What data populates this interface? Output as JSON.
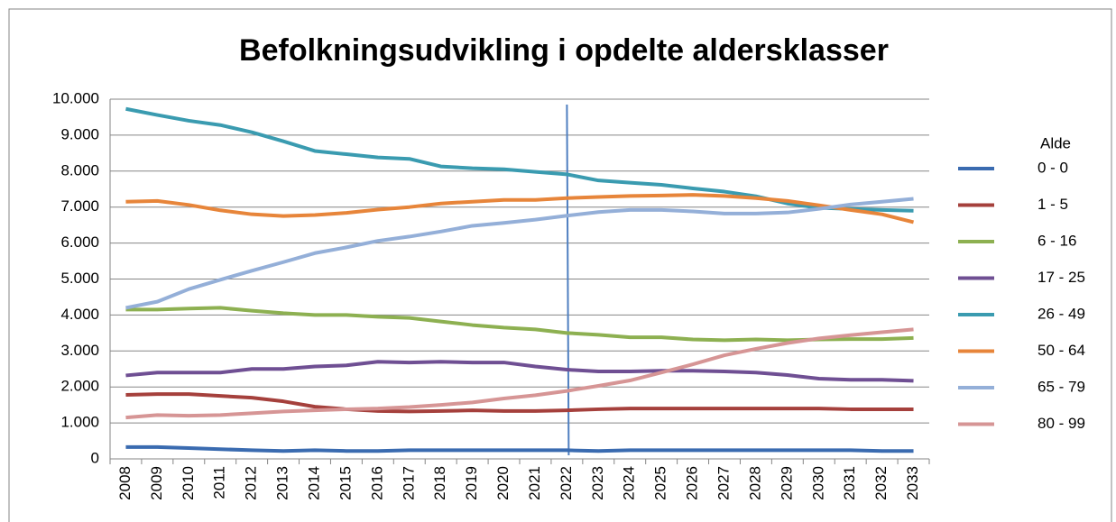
{
  "chart_data": {
    "type": "line",
    "title": "Befolkningsudvikling i opdelte aldersklasser",
    "legend_title": "Alde",
    "legend": "right",
    "grid": true,
    "vline_x": "2022",
    "categories": [
      "2008",
      "2009",
      "2010",
      "2011",
      "2012",
      "2013",
      "2014",
      "2015",
      "2016",
      "2017",
      "2018",
      "2019",
      "2020",
      "2021",
      "2022",
      "2023",
      "2024",
      "2025",
      "2026",
      "2027",
      "2028",
      "2029",
      "2030",
      "2031",
      "2032",
      "2033"
    ],
    "ylim": [
      0,
      10000
    ],
    "yticks": [
      0,
      {
        "value": 1000,
        "label": "1.000"
      },
      {
        "value": 2000,
        "label": "2.000"
      },
      {
        "value": 3000,
        "label": "3.000"
      },
      {
        "value": 4000,
        "label": "4.000"
      },
      {
        "value": 5000,
        "label": "5.000"
      },
      {
        "value": 6000,
        "label": "6.000"
      },
      {
        "value": 7000,
        "label": "7.000"
      },
      {
        "value": 8000,
        "label": "8.000"
      },
      {
        "value": 9000,
        "label": "9.000"
      },
      {
        "value": 10000,
        "label": "10.000"
      }
    ],
    "series": [
      {
        "name": "0 - 0",
        "color": "#3a6bb0",
        "values": [
          330,
          330,
          300,
          270,
          240,
          220,
          240,
          220,
          220,
          240,
          240,
          240,
          240,
          240,
          240,
          220,
          240,
          240,
          240,
          240,
          240,
          240,
          240,
          240,
          220,
          220
        ]
      },
      {
        "name": "1 - 5",
        "color": "#a5403c",
        "values": [
          1780,
          1800,
          1800,
          1750,
          1700,
          1600,
          1450,
          1380,
          1330,
          1320,
          1330,
          1350,
          1330,
          1330,
          1350,
          1380,
          1400,
          1400,
          1400,
          1400,
          1400,
          1400,
          1400,
          1380,
          1380,
          1380
        ]
      },
      {
        "name": "6 - 16",
        "color": "#8db051",
        "values": [
          4150,
          4150,
          4180,
          4200,
          4120,
          4050,
          4000,
          4000,
          3950,
          3920,
          3820,
          3720,
          3650,
          3600,
          3500,
          3450,
          3380,
          3380,
          3320,
          3300,
          3320,
          3300,
          3320,
          3330,
          3330,
          3360
        ]
      },
      {
        "name": "17 - 25",
        "color": "#6f4f93",
        "values": [
          2320,
          2400,
          2400,
          2400,
          2500,
          2500,
          2570,
          2600,
          2700,
          2680,
          2700,
          2680,
          2680,
          2570,
          2480,
          2430,
          2430,
          2450,
          2450,
          2430,
          2400,
          2330,
          2230,
          2200,
          2200,
          2170
        ]
      },
      {
        "name": "26 - 49",
        "color": "#3a9bb0",
        "values": [
          9730,
          9560,
          9400,
          9280,
          9080,
          8830,
          8560,
          8470,
          8380,
          8340,
          8130,
          8080,
          8050,
          7980,
          7910,
          7740,
          7680,
          7620,
          7520,
          7430,
          7300,
          7100,
          6980,
          6950,
          6920,
          6900
        ]
      },
      {
        "name": "50 - 64",
        "color": "#e7853a",
        "values": [
          7150,
          7170,
          7060,
          6910,
          6800,
          6750,
          6780,
          6840,
          6930,
          7000,
          7100,
          7150,
          7200,
          7200,
          7250,
          7280,
          7310,
          7320,
          7340,
          7310,
          7250,
          7170,
          7050,
          6920,
          6800,
          6580
        ]
      },
      {
        "name": "65 - 79",
        "color": "#94afd8",
        "values": [
          4200,
          4370,
          4720,
          4980,
          5230,
          5470,
          5720,
          5880,
          6060,
          6180,
          6320,
          6480,
          6560,
          6650,
          6760,
          6860,
          6920,
          6920,
          6880,
          6820,
          6820,
          6850,
          6950,
          7070,
          7150,
          7230
        ]
      },
      {
        "name": "80 - 99",
        "color": "#d69595",
        "values": [
          1150,
          1220,
          1200,
          1220,
          1270,
          1320,
          1350,
          1380,
          1400,
          1440,
          1500,
          1570,
          1680,
          1770,
          1890,
          2030,
          2180,
          2400,
          2630,
          2880,
          3060,
          3220,
          3350,
          3440,
          3520,
          3600
        ]
      }
    ]
  }
}
